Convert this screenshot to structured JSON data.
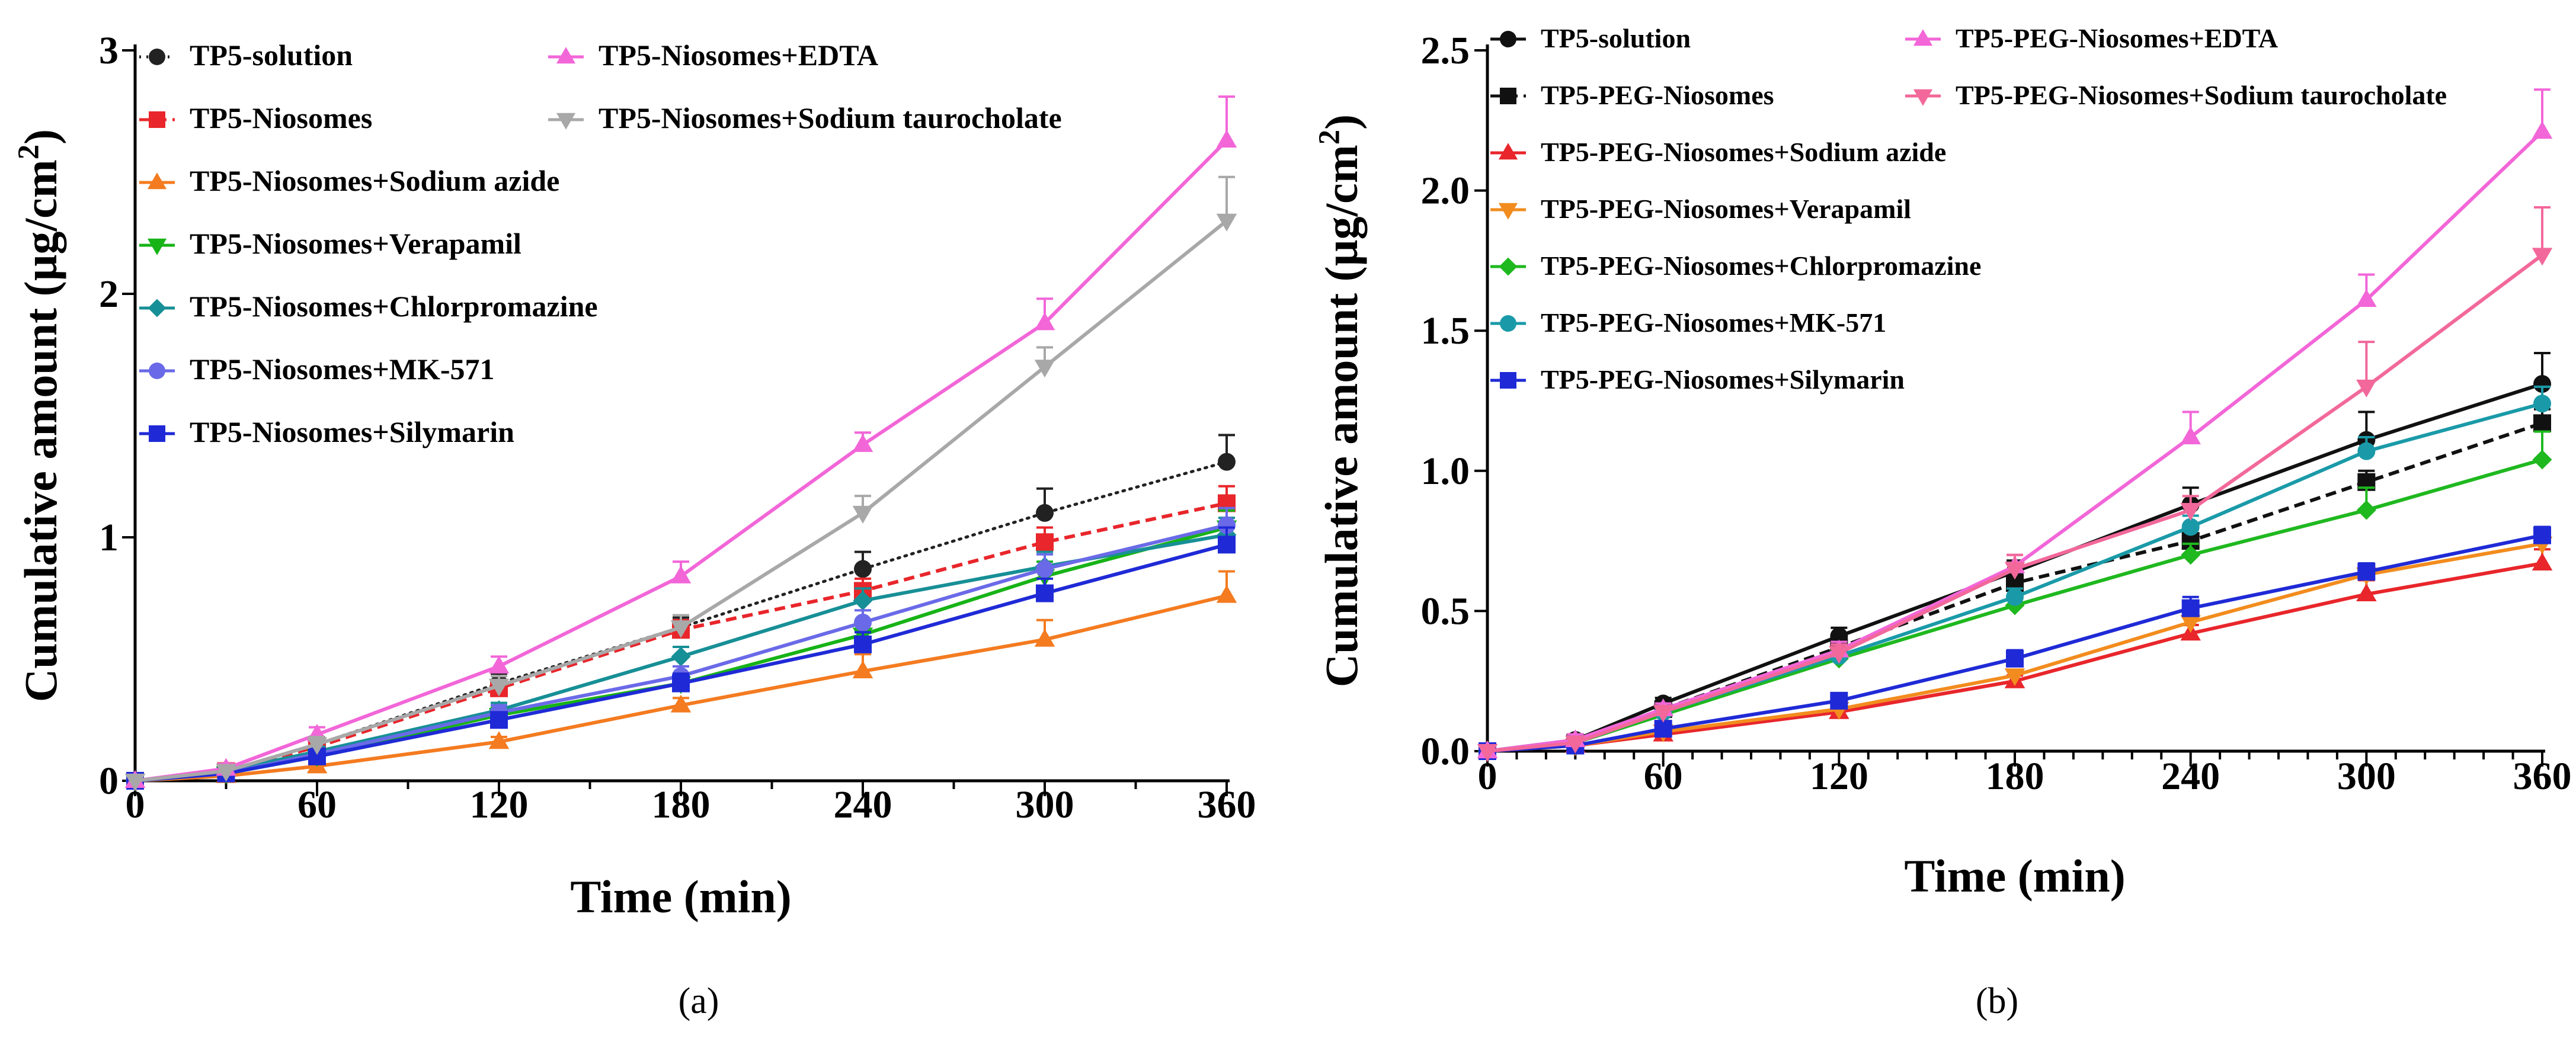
{
  "chart_data": [
    {
      "type": "line",
      "panel_label": "(a)",
      "xlabel": "Time (min)",
      "ylabel": "Cumulative amount (µg/cm²)",
      "ylabel_main": "Cumulative amount (µg/cm",
      "ylabel_sup": "2",
      "ylabel_close": ")",
      "xlim": [
        0,
        360
      ],
      "ylim": [
        0,
        3
      ],
      "xticks": [
        0,
        60,
        120,
        180,
        240,
        300,
        360
      ],
      "yticks": [
        0,
        1,
        2,
        3
      ],
      "ytick_labels": [
        "0",
        "1",
        "2",
        "3"
      ],
      "x": [
        0,
        30,
        60,
        120,
        180,
        240,
        300,
        360
      ],
      "series": [
        {
          "name": "TP5-solution",
          "color": "#222222",
          "dash": "dotted",
          "marker": "circle",
          "values": [
            0,
            0.04,
            0.15,
            0.4,
            0.63,
            0.87,
            1.1,
            1.31
          ],
          "errors": [
            0,
            0.02,
            0.03,
            0.04,
            0.04,
            0.07,
            0.1,
            0.11
          ]
        },
        {
          "name": "TP5-Niosomes",
          "color": "#e8262b",
          "dash": "dashed",
          "marker": "square",
          "values": [
            0,
            0.04,
            0.14,
            0.38,
            0.62,
            0.78,
            0.98,
            1.14
          ],
          "errors": [
            0,
            0.02,
            0.02,
            0.03,
            0.04,
            0.05,
            0.06,
            0.07
          ]
        },
        {
          "name": "TP5-Niosomes+Sodium azide",
          "color": "#f47b20",
          "dash": "solid",
          "marker": "triangle",
          "values": [
            0,
            0.02,
            0.06,
            0.16,
            0.31,
            0.45,
            0.58,
            0.76
          ],
          "errors": [
            0,
            0.01,
            0.01,
            0.02,
            0.03,
            0.07,
            0.08,
            0.1
          ]
        },
        {
          "name": "TP5-Niosomes+Verapamil",
          "color": "#17b317",
          "dash": "solid",
          "marker": "triangle-down",
          "values": [
            0,
            0.03,
            0.1,
            0.27,
            0.4,
            0.6,
            0.84,
            1.04
          ],
          "errors": [
            0,
            0.01,
            0.02,
            0.03,
            0.04,
            0.05,
            0.06,
            0.07
          ]
        },
        {
          "name": "TP5-Niosomes+Chlorpromazine",
          "color": "#178f96",
          "dash": "solid",
          "marker": "diamond",
          "values": [
            0,
            0.04,
            0.12,
            0.29,
            0.51,
            0.74,
            0.88,
            1.01
          ],
          "errors": [
            0,
            0.01,
            0.02,
            0.03,
            0.04,
            0.05,
            0.06,
            0.07
          ]
        },
        {
          "name": "TP5-Niosomes+MK-571",
          "color": "#6a6ae8",
          "dash": "solid",
          "marker": "circle",
          "values": [
            0,
            0.03,
            0.11,
            0.28,
            0.43,
            0.65,
            0.87,
            1.05
          ],
          "errors": [
            0,
            0.01,
            0.02,
            0.03,
            0.04,
            0.05,
            0.06,
            0.07
          ]
        },
        {
          "name": "TP5-Niosomes+Silymarin",
          "color": "#1f2ad6",
          "dash": "solid",
          "marker": "square",
          "values": [
            0,
            0.03,
            0.1,
            0.25,
            0.4,
            0.56,
            0.77,
            0.97
          ],
          "errors": [
            0,
            0.01,
            0.02,
            0.03,
            0.04,
            0.05,
            0.06,
            0.07
          ]
        },
        {
          "name": "TP5-Niosomes+EDTA",
          "color": "#f266d8",
          "dash": "solid",
          "marker": "triangle",
          "values": [
            0,
            0.05,
            0.19,
            0.47,
            0.84,
            1.38,
            1.88,
            2.63
          ],
          "errors": [
            0,
            0.02,
            0.03,
            0.04,
            0.06,
            0.05,
            0.1,
            0.18
          ]
        },
        {
          "name": "TP5-Niosomes+Sodium taurocholate",
          "color": "#a8a8a8",
          "dash": "solid",
          "marker": "triangle-down",
          "values": [
            0,
            0.04,
            0.15,
            0.39,
            0.63,
            1.1,
            1.7,
            2.3
          ],
          "errors": [
            0,
            0.02,
            0.03,
            0.04,
            0.05,
            0.07,
            0.08,
            0.18
          ]
        }
      ],
      "legend_col1": [
        "TP5-solution",
        "TP5-Niosomes",
        "TP5-Niosomes+Sodium azide",
        "TP5-Niosomes+Verapamil",
        "TP5-Niosomes+Chlorpromazine",
        "TP5-Niosomes+MK-571",
        "TP5-Niosomes+Silymarin"
      ],
      "legend_col2": [
        "TP5-Niosomes+EDTA",
        "TP5-Niosomes+Sodium taurocholate"
      ]
    },
    {
      "type": "line",
      "panel_label": "(b)",
      "xlabel": "Time (min)",
      "ylabel": "Cumulative amount (µg/cm²)",
      "ylabel_main": "Cumulative amount (µg/cm",
      "ylabel_sup": "2",
      "ylabel_close": ")",
      "xlim": [
        0,
        360
      ],
      "ylim": [
        0,
        2.5
      ],
      "xticks": [
        0,
        60,
        120,
        180,
        240,
        300,
        360
      ],
      "yticks": [
        0,
        0.5,
        1.0,
        1.5,
        2.0,
        2.5
      ],
      "ytick_labels": [
        "0.0",
        "0.5",
        "1.0",
        "1.5",
        "2.0",
        "2.5"
      ],
      "x": [
        0,
        30,
        60,
        120,
        180,
        240,
        300,
        360
      ],
      "series": [
        {
          "name": "TP5-solution",
          "color": "#111111",
          "dash": "solid",
          "marker": "circle",
          "values": [
            0,
            0.04,
            0.17,
            0.41,
            0.64,
            0.88,
            1.11,
            1.31
          ],
          "errors": [
            0,
            0.02,
            0.02,
            0.03,
            0.04,
            0.06,
            0.1,
            0.11
          ]
        },
        {
          "name": "TP5-PEG-Niosomes",
          "color": "#111111",
          "dash": "dashed",
          "marker": "square",
          "values": [
            0,
            0.03,
            0.15,
            0.37,
            0.6,
            0.75,
            0.96,
            1.17
          ],
          "errors": [
            0,
            0.01,
            0.02,
            0.03,
            0.03,
            0.04,
            0.04,
            0.05
          ]
        },
        {
          "name": "TP5-PEG-Niosomes+Sodium azide",
          "color": "#e8262b",
          "dash": "solid",
          "marker": "triangle",
          "values": [
            0,
            0.02,
            0.06,
            0.14,
            0.25,
            0.42,
            0.56,
            0.67
          ],
          "errors": [
            0,
            0.01,
            0.01,
            0.02,
            0.02,
            0.03,
            0.05,
            0.05
          ]
        },
        {
          "name": "TP5-PEG-Niosomes+Verapamil",
          "color": "#f28c1e",
          "dash": "solid",
          "marker": "triangle-down",
          "values": [
            0,
            0.02,
            0.07,
            0.15,
            0.27,
            0.46,
            0.63,
            0.74
          ],
          "errors": [
            0,
            0.01,
            0.01,
            0.02,
            0.02,
            0.03,
            0.04,
            0.04
          ]
        },
        {
          "name": "TP5-PEG-Niosomes+Chlorpromazine",
          "color": "#1fb81f",
          "dash": "solid",
          "marker": "diamond",
          "values": [
            0,
            0.03,
            0.13,
            0.33,
            0.52,
            0.7,
            0.86,
            1.04
          ],
          "errors": [
            0,
            0.01,
            0.02,
            0.03,
            0.03,
            0.04,
            0.08,
            0.1
          ]
        },
        {
          "name": "TP5-PEG-Niosomes+MK-571",
          "color": "#1a9aa8",
          "dash": "solid",
          "marker": "circle",
          "values": [
            0,
            0.03,
            0.14,
            0.34,
            0.55,
            0.8,
            1.07,
            1.24
          ],
          "errors": [
            0,
            0.01,
            0.02,
            0.03,
            0.03,
            0.04,
            0.05,
            0.06
          ]
        },
        {
          "name": "TP5-PEG-Niosomes+Silymarin",
          "color": "#1f2ad6",
          "dash": "solid",
          "marker": "square",
          "values": [
            0,
            0.02,
            0.08,
            0.18,
            0.33,
            0.51,
            0.64,
            0.77
          ],
          "errors": [
            0,
            0.01,
            0.01,
            0.02,
            0.03,
            0.04,
            0.03,
            0.03
          ]
        },
        {
          "name": "TP5-PEG-Niosomes+EDTA",
          "color": "#f266d8",
          "dash": "solid",
          "marker": "triangle",
          "values": [
            0,
            0.04,
            0.15,
            0.36,
            0.66,
            1.12,
            1.61,
            2.21
          ],
          "errors": [
            0,
            0.02,
            0.02,
            0.03,
            0.04,
            0.09,
            0.09,
            0.15
          ]
        },
        {
          "name": "TP5-PEG-Niosomes+Sodium taurocholate",
          "color": "#f2689a",
          "dash": "solid",
          "marker": "triangle-down",
          "values": [
            0,
            0.03,
            0.14,
            0.35,
            0.65,
            0.86,
            1.3,
            1.77
          ],
          "errors": [
            0,
            0.01,
            0.02,
            0.03,
            0.05,
            0.05,
            0.16,
            0.17
          ]
        }
      ],
      "legend_col1": [
        "TP5-solution",
        "TP5-PEG-Niosomes",
        "TP5-PEG-Niosomes+Sodium azide",
        "TP5-PEG-Niosomes+Verapamil",
        "TP5-PEG-Niosomes+Chlorpromazine",
        "TP5-PEG-Niosomes+MK-571",
        "TP5-PEG-Niosomes+Silymarin"
      ],
      "legend_col2": [
        "TP5-PEG-Niosomes+EDTA",
        "TP5-PEG-Niosomes+Sodium taurocholate"
      ]
    }
  ]
}
